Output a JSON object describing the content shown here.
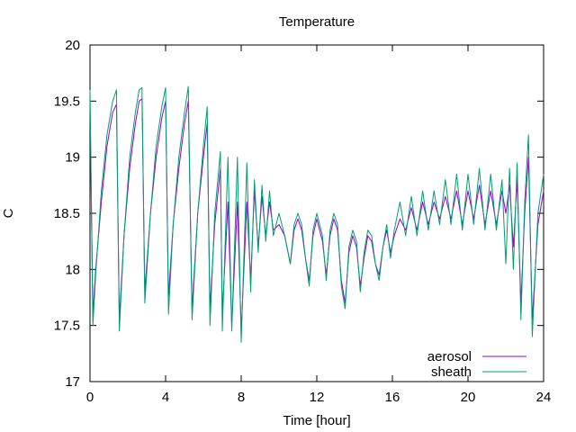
{
  "chart_data": {
    "type": "line",
    "title": "Temperature",
    "xlabel": "Time [hour]",
    "ylabel": "C",
    "xlim": [
      0,
      24
    ],
    "ylim": [
      17,
      20
    ],
    "xticks": [
      0,
      4,
      8,
      12,
      16,
      20,
      24
    ],
    "yticks": [
      17,
      17.5,
      18,
      18.5,
      19,
      19.5,
      20
    ],
    "xtick_labels": [
      "0",
      "4",
      "8",
      "12",
      "16",
      "20",
      "24"
    ],
    "ytick_labels": [
      "17",
      "17.5",
      "18",
      "18.5",
      "19",
      "19.5",
      "20"
    ],
    "grid": false,
    "legend_position": "bottom-right",
    "series": [
      {
        "name": "aerosol",
        "color": "#9400d3",
        "points": [
          [
            0.0,
            19.5
          ],
          [
            0.15,
            17.6
          ],
          [
            0.3,
            18.0
          ],
          [
            0.6,
            18.6
          ],
          [
            0.9,
            19.1
          ],
          [
            1.2,
            19.4
          ],
          [
            1.4,
            19.47
          ],
          [
            1.55,
            17.55
          ],
          [
            1.8,
            18.3
          ],
          [
            2.1,
            18.9
          ],
          [
            2.4,
            19.3
          ],
          [
            2.6,
            19.5
          ],
          [
            2.75,
            19.52
          ],
          [
            2.9,
            17.8
          ],
          [
            3.2,
            18.5
          ],
          [
            3.5,
            19.0
          ],
          [
            3.8,
            19.35
          ],
          [
            4.0,
            19.5
          ],
          [
            4.15,
            17.75
          ],
          [
            4.4,
            18.4
          ],
          [
            4.7,
            18.9
          ],
          [
            5.0,
            19.3
          ],
          [
            5.2,
            19.5
          ],
          [
            5.4,
            17.65
          ],
          [
            5.7,
            18.5
          ],
          [
            6.0,
            19.0
          ],
          [
            6.2,
            19.3
          ],
          [
            6.35,
            17.65
          ],
          [
            6.6,
            18.4
          ],
          [
            6.9,
            18.9
          ],
          [
            7.0,
            17.6
          ],
          [
            7.3,
            18.6
          ],
          [
            7.5,
            17.5
          ],
          [
            7.8,
            18.6
          ],
          [
            8.0,
            17.45
          ],
          [
            8.3,
            18.6
          ],
          [
            8.5,
            17.9
          ],
          [
            8.7,
            18.7
          ],
          [
            8.9,
            18.2
          ],
          [
            9.1,
            18.65
          ],
          [
            9.3,
            18.3
          ],
          [
            9.5,
            18.6
          ],
          [
            9.7,
            18.35
          ],
          [
            10.0,
            18.4
          ],
          [
            10.3,
            18.3
          ],
          [
            10.6,
            18.05
          ],
          [
            10.8,
            18.35
          ],
          [
            11.0,
            18.45
          ],
          [
            11.2,
            18.35
          ],
          [
            11.4,
            18.1
          ],
          [
            11.6,
            17.9
          ],
          [
            11.8,
            18.3
          ],
          [
            12.0,
            18.45
          ],
          [
            12.3,
            18.25
          ],
          [
            12.5,
            17.95
          ],
          [
            12.7,
            18.3
          ],
          [
            12.9,
            18.45
          ],
          [
            13.1,
            18.35
          ],
          [
            13.3,
            17.9
          ],
          [
            13.5,
            17.7
          ],
          [
            13.7,
            18.15
          ],
          [
            13.9,
            18.3
          ],
          [
            14.1,
            18.2
          ],
          [
            14.3,
            17.85
          ],
          [
            14.5,
            18.1
          ],
          [
            14.7,
            18.3
          ],
          [
            14.9,
            18.25
          ],
          [
            15.1,
            18.05
          ],
          [
            15.3,
            17.95
          ],
          [
            15.5,
            18.2
          ],
          [
            15.7,
            18.35
          ],
          [
            15.9,
            18.15
          ],
          [
            16.1,
            18.3
          ],
          [
            16.4,
            18.45
          ],
          [
            16.7,
            18.35
          ],
          [
            17.0,
            18.55
          ],
          [
            17.3,
            18.35
          ],
          [
            17.6,
            18.6
          ],
          [
            17.9,
            18.4
          ],
          [
            18.2,
            18.6
          ],
          [
            18.5,
            18.45
          ],
          [
            18.8,
            18.65
          ],
          [
            19.1,
            18.45
          ],
          [
            19.4,
            18.7
          ],
          [
            19.7,
            18.4
          ],
          [
            20.0,
            18.7
          ],
          [
            20.3,
            18.45
          ],
          [
            20.6,
            18.75
          ],
          [
            20.9,
            18.4
          ],
          [
            21.2,
            18.7
          ],
          [
            21.5,
            18.4
          ],
          [
            21.8,
            18.7
          ],
          [
            22.0,
            18.5
          ],
          [
            22.2,
            18.75
          ],
          [
            22.4,
            18.2
          ],
          [
            22.6,
            18.8
          ],
          [
            22.8,
            17.7
          ],
          [
            23.0,
            18.5
          ],
          [
            23.2,
            19.0
          ],
          [
            23.4,
            17.55
          ],
          [
            23.7,
            18.4
          ],
          [
            24.0,
            18.7
          ]
        ]
      },
      {
        "name": "sheath",
        "color": "#009e73",
        "points": [
          [
            0.0,
            19.6
          ],
          [
            0.15,
            17.5
          ],
          [
            0.3,
            17.95
          ],
          [
            0.6,
            18.7
          ],
          [
            0.9,
            19.2
          ],
          [
            1.2,
            19.5
          ],
          [
            1.4,
            19.6
          ],
          [
            1.55,
            17.45
          ],
          [
            1.8,
            18.3
          ],
          [
            2.1,
            19.0
          ],
          [
            2.4,
            19.4
          ],
          [
            2.6,
            19.6
          ],
          [
            2.75,
            19.62
          ],
          [
            2.9,
            17.7
          ],
          [
            3.2,
            18.5
          ],
          [
            3.5,
            19.1
          ],
          [
            3.8,
            19.45
          ],
          [
            4.0,
            19.62
          ],
          [
            4.15,
            17.6
          ],
          [
            4.4,
            18.4
          ],
          [
            4.7,
            19.0
          ],
          [
            5.0,
            19.4
          ],
          [
            5.2,
            19.63
          ],
          [
            5.4,
            17.55
          ],
          [
            5.7,
            18.5
          ],
          [
            6.0,
            19.1
          ],
          [
            6.2,
            19.45
          ],
          [
            6.35,
            17.5
          ],
          [
            6.6,
            18.5
          ],
          [
            6.9,
            19.05
          ],
          [
            7.0,
            17.45
          ],
          [
            7.3,
            19.0
          ],
          [
            7.5,
            17.45
          ],
          [
            7.8,
            19.0
          ],
          [
            8.0,
            17.35
          ],
          [
            8.3,
            18.95
          ],
          [
            8.5,
            17.8
          ],
          [
            8.7,
            18.8
          ],
          [
            8.9,
            18.15
          ],
          [
            9.1,
            18.75
          ],
          [
            9.3,
            18.25
          ],
          [
            9.5,
            18.7
          ],
          [
            9.7,
            18.3
          ],
          [
            10.0,
            18.5
          ],
          [
            10.3,
            18.3
          ],
          [
            10.6,
            18.05
          ],
          [
            10.8,
            18.4
          ],
          [
            11.0,
            18.5
          ],
          [
            11.2,
            18.4
          ],
          [
            11.4,
            18.1
          ],
          [
            11.6,
            17.85
          ],
          [
            11.8,
            18.35
          ],
          [
            12.0,
            18.5
          ],
          [
            12.3,
            18.3
          ],
          [
            12.5,
            17.9
          ],
          [
            12.7,
            18.35
          ],
          [
            12.9,
            18.5
          ],
          [
            13.1,
            18.4
          ],
          [
            13.3,
            17.85
          ],
          [
            13.5,
            17.65
          ],
          [
            13.7,
            18.2
          ],
          [
            13.9,
            18.35
          ],
          [
            14.1,
            18.25
          ],
          [
            14.3,
            17.8
          ],
          [
            14.5,
            18.15
          ],
          [
            14.7,
            18.35
          ],
          [
            14.9,
            18.3
          ],
          [
            15.1,
            18.05
          ],
          [
            15.3,
            17.9
          ],
          [
            15.5,
            18.2
          ],
          [
            15.7,
            18.4
          ],
          [
            15.9,
            18.1
          ],
          [
            16.1,
            18.35
          ],
          [
            16.4,
            18.6
          ],
          [
            16.7,
            18.3
          ],
          [
            17.0,
            18.65
          ],
          [
            17.3,
            18.3
          ],
          [
            17.6,
            18.7
          ],
          [
            17.9,
            18.35
          ],
          [
            18.2,
            18.7
          ],
          [
            18.5,
            18.4
          ],
          [
            18.8,
            18.8
          ],
          [
            19.1,
            18.4
          ],
          [
            19.4,
            18.85
          ],
          [
            19.7,
            18.35
          ],
          [
            20.0,
            18.85
          ],
          [
            20.3,
            18.4
          ],
          [
            20.6,
            18.9
          ],
          [
            20.9,
            18.35
          ],
          [
            21.2,
            18.85
          ],
          [
            21.5,
            18.35
          ],
          [
            21.8,
            18.8
          ],
          [
            22.0,
            18.05
          ],
          [
            22.2,
            18.9
          ],
          [
            22.4,
            18.0
          ],
          [
            22.6,
            18.95
          ],
          [
            22.8,
            17.55
          ],
          [
            23.0,
            18.6
          ],
          [
            23.2,
            19.2
          ],
          [
            23.4,
            17.4
          ],
          [
            23.7,
            18.5
          ],
          [
            24.0,
            18.85
          ]
        ]
      }
    ]
  }
}
